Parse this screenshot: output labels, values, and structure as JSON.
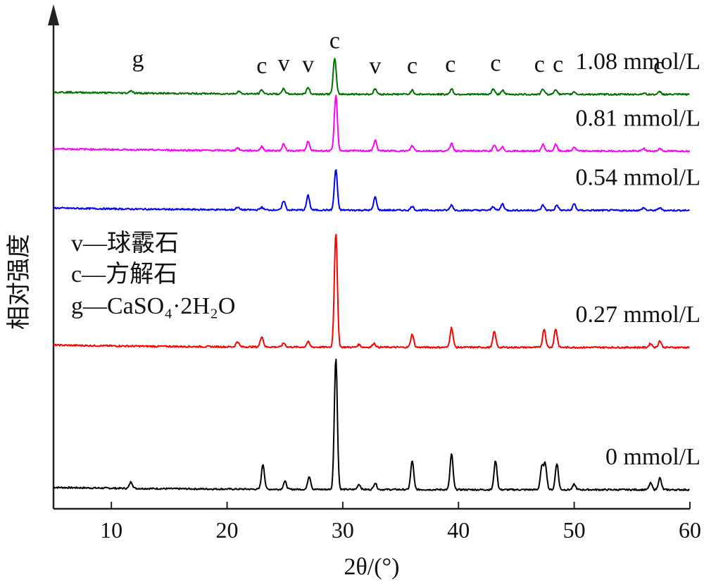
{
  "chart_data": {
    "type": "line",
    "title": "",
    "xlabel": "2θ/(°)",
    "ylabel": "相对强度",
    "xlim": [
      5,
      60
    ],
    "x_ticks": [
      10,
      20,
      30,
      40,
      50,
      60
    ],
    "y_ticks_shown": false,
    "legend_lines": [
      "v—球霰石",
      "c—方解石",
      "g—CaSO₄·2H₂O"
    ],
    "series": [
      {
        "name": "0 mmol/L",
        "color": "#000000",
        "baseline": 0,
        "peaks": [
          [
            11.7,
            0.05
          ],
          [
            23.1,
            0.19
          ],
          [
            25.0,
            0.06
          ],
          [
            27.1,
            0.1
          ],
          [
            29.4,
            1.0
          ],
          [
            31.4,
            0.04
          ],
          [
            32.8,
            0.05
          ],
          [
            36.0,
            0.22
          ],
          [
            39.4,
            0.27
          ],
          [
            43.2,
            0.22
          ],
          [
            47.2,
            0.17
          ],
          [
            47.5,
            0.19
          ],
          [
            48.5,
            0.2
          ],
          [
            50.0,
            0.04
          ],
          [
            56.6,
            0.05
          ],
          [
            57.4,
            0.09
          ]
        ]
      },
      {
        "name": "0.27 mmol/L",
        "color": "#ff0000",
        "baseline": 1.08,
        "peaks": [
          [
            20.9,
            0.04
          ],
          [
            23.0,
            0.08
          ],
          [
            24.9,
            0.03
          ],
          [
            27.0,
            0.04
          ],
          [
            29.4,
            0.87
          ],
          [
            31.4,
            0.02
          ],
          [
            32.7,
            0.03
          ],
          [
            36.0,
            0.1
          ],
          [
            39.4,
            0.15
          ],
          [
            43.1,
            0.12
          ],
          [
            47.4,
            0.14
          ],
          [
            48.4,
            0.14
          ],
          [
            56.6,
            0.03
          ],
          [
            57.4,
            0.05
          ]
        ]
      },
      {
        "name": "0.54 mmol/L",
        "color": "#0000ff",
        "baseline": 2.12,
        "peaks": [
          [
            20.9,
            0.02
          ],
          [
            23.0,
            0.02
          ],
          [
            24.9,
            0.07
          ],
          [
            27.0,
            0.11
          ],
          [
            29.4,
            0.31
          ],
          [
            32.8,
            0.1
          ],
          [
            36.0,
            0.03
          ],
          [
            39.4,
            0.04
          ],
          [
            43.0,
            0.03
          ],
          [
            43.8,
            0.05
          ],
          [
            47.3,
            0.04
          ],
          [
            48.5,
            0.04
          ],
          [
            50.0,
            0.05
          ],
          [
            56.0,
            0.02
          ],
          [
            57.4,
            0.02
          ]
        ]
      },
      {
        "name": "0.81 mmol/L",
        "color": "#ff00ff",
        "baseline": 2.57,
        "peaks": [
          [
            20.9,
            0.02
          ],
          [
            23.0,
            0.03
          ],
          [
            24.9,
            0.05
          ],
          [
            27.0,
            0.07
          ],
          [
            29.4,
            0.42
          ],
          [
            32.8,
            0.08
          ],
          [
            36.0,
            0.04
          ],
          [
            39.4,
            0.06
          ],
          [
            43.1,
            0.04
          ],
          [
            43.8,
            0.03
          ],
          [
            47.3,
            0.05
          ],
          [
            48.4,
            0.05
          ],
          [
            50.0,
            0.03
          ],
          [
            56.0,
            0.02
          ],
          [
            57.4,
            0.02
          ]
        ]
      },
      {
        "name": "1.08 mmol/L",
        "color": "#007000",
        "baseline": 3.0,
        "peaks": [
          [
            11.7,
            0.02
          ],
          [
            21.0,
            0.02
          ],
          [
            23.0,
            0.03
          ],
          [
            24.9,
            0.04
          ],
          [
            27.0,
            0.05
          ],
          [
            29.3,
            0.27
          ],
          [
            32.8,
            0.04
          ],
          [
            36.0,
            0.03
          ],
          [
            39.4,
            0.04
          ],
          [
            43.0,
            0.04
          ],
          [
            43.8,
            0.03
          ],
          [
            47.3,
            0.04
          ],
          [
            48.4,
            0.04
          ],
          [
            50.0,
            0.02
          ],
          [
            56.0,
            0.01
          ],
          [
            57.4,
            0.02
          ]
        ]
      }
    ],
    "peak_labels": [
      {
        "text": "g",
        "x": 12.3,
        "y": 3.21
      },
      {
        "text": "c",
        "x": 23.0,
        "y": 3.16
      },
      {
        "text": "v",
        "x": 24.9,
        "y": 3.18
      },
      {
        "text": "v",
        "x": 27.0,
        "y": 3.17
      },
      {
        "text": "c",
        "x": 29.3,
        "y": 3.35
      },
      {
        "text": "v",
        "x": 32.8,
        "y": 3.16
      },
      {
        "text": "c",
        "x": 36.0,
        "y": 3.16
      },
      {
        "text": "c",
        "x": 39.3,
        "y": 3.17
      },
      {
        "text": "c",
        "x": 43.2,
        "y": 3.18
      },
      {
        "text": "c",
        "x": 47.0,
        "y": 3.17
      },
      {
        "text": "c",
        "x": 48.6,
        "y": 3.17
      },
      {
        "text": "c",
        "x": 57.3,
        "y": 3.16
      }
    ]
  }
}
